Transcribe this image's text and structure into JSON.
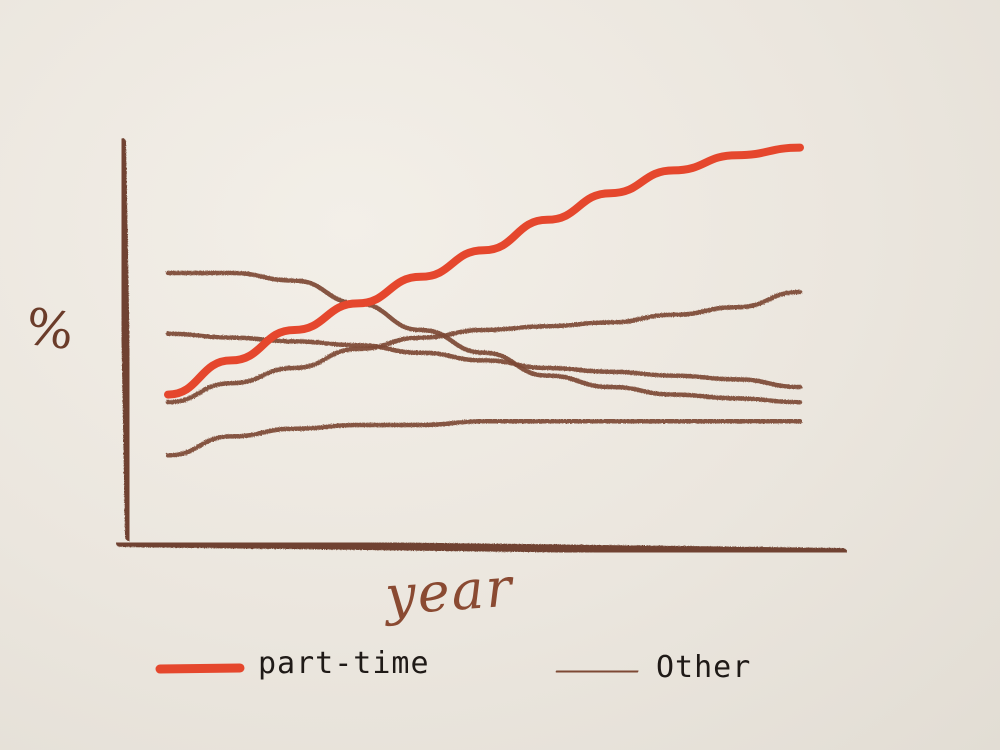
{
  "chart_data": {
    "type": "line",
    "title": "",
    "xlabel": "year",
    "ylabel": "%",
    "ylim": [
      0,
      100
    ],
    "grid": false,
    "legend": "bottom",
    "colors": {
      "accent": "#e5472d",
      "other": "#7d4a35",
      "axis": "#6f4330"
    },
    "series": [
      {
        "name": "part-time",
        "color": "#e5472d",
        "x": [
          0,
          10,
          20,
          30,
          40,
          50,
          60,
          70,
          80,
          90,
          100
        ],
        "y": [
          33,
          42,
          50,
          57,
          64,
          71,
          79,
          86,
          92,
          96,
          98
        ]
      },
      {
        "name": "Other",
        "color": "#7d4a35",
        "x": [
          0,
          10,
          20,
          30,
          40,
          50,
          60,
          70,
          80,
          90,
          100
        ],
        "y": [
          65,
          65,
          63,
          57,
          50,
          44,
          38,
          35,
          33,
          32,
          31
        ]
      },
      {
        "name": "Other",
        "color": "#7d4a35",
        "x": [
          0,
          10,
          20,
          30,
          40,
          50,
          60,
          70,
          80,
          90,
          100
        ],
        "y": [
          49,
          48,
          47,
          46,
          44,
          42,
          40,
          39,
          38,
          37,
          35
        ]
      },
      {
        "name": "Other",
        "color": "#7d4a35",
        "x": [
          0,
          10,
          20,
          30,
          40,
          50,
          60,
          70,
          80,
          90,
          100
        ],
        "y": [
          31,
          36,
          40,
          45,
          48,
          50,
          51,
          52,
          54,
          56,
          60
        ]
      },
      {
        "name": "Other",
        "color": "#7d4a35",
        "x": [
          0,
          10,
          20,
          30,
          40,
          50,
          60,
          70,
          80,
          90,
          100
        ],
        "y": [
          17,
          22,
          24,
          25,
          25,
          26,
          26,
          26,
          26,
          26,
          26
        ]
      }
    ],
    "legend_items": [
      {
        "label": "part-time",
        "color": "#e5472d"
      },
      {
        "label": "Other",
        "color": "#7d4a35"
      }
    ]
  }
}
